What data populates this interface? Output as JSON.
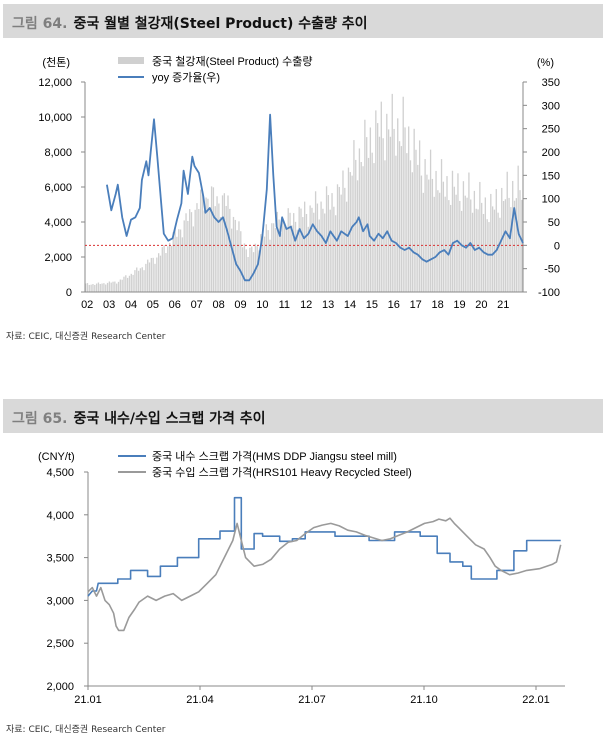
{
  "figure1": {
    "number": "그림 64.",
    "title": "중국 월별 철강재(Steel Product) 수출량 추이",
    "source": "자료: CEIC, 대신증권 Research Center",
    "chart_data": {
      "type": "bar+line",
      "left_unit": "(천톤)",
      "right_unit": "(%)",
      "left_ylim": [
        0,
        12000
      ],
      "left_ticks": [
        "0",
        "2,000",
        "4,000",
        "6,000",
        "8,000",
        "10,000",
        "12,000"
      ],
      "right_ylim": [
        -100,
        350
      ],
      "right_ticks": [
        "-100",
        "-50",
        "0",
        "50",
        "100",
        "150",
        "200",
        "250",
        "300",
        "350"
      ],
      "x_labels": [
        "02",
        "03",
        "04",
        "05",
        "06",
        "07",
        "08",
        "09",
        "10",
        "11",
        "12",
        "13",
        "14",
        "15",
        "16",
        "17",
        "18",
        "19",
        "20",
        "21"
      ],
      "reference_line_yoy": 0,
      "series": [
        {
          "name": "중국 철강재(Steel Product) 수출량",
          "type": "bar",
          "axis": "left",
          "color": "#d0d0d0",
          "annual_levels": [
            {
              "year": "02",
              "level": 450
            },
            {
              "year": "03",
              "level": 580
            },
            {
              "year": "04",
              "level": 1300
            },
            {
              "year": "05",
              "level": 2200
            },
            {
              "year": "06",
              "level": 3800
            },
            {
              "year": "07",
              "level": 5400
            },
            {
              "year": "08",
              "level": 5000
            },
            {
              "year": "09",
              "level": 2100
            },
            {
              "year": "10",
              "level": 3700
            },
            {
              "year": "11",
              "level": 4100
            },
            {
              "year": "12",
              "level": 4700
            },
            {
              "year": "13",
              "level": 5200
            },
            {
              "year": "14",
              "level": 7500
            },
            {
              "year": "15",
              "level": 9100
            },
            {
              "year": "16",
              "level": 9000
            },
            {
              "year": "17",
              "level": 6700
            },
            {
              "year": "18",
              "level": 5800
            },
            {
              "year": "19",
              "level": 5400
            },
            {
              "year": "20",
              "level": 4500
            },
            {
              "year": "21",
              "level": 5600
            }
          ]
        },
        {
          "name": "yoy 증가율(우)",
          "type": "line",
          "axis": "right",
          "color": "#4a7ebb",
          "points": [
            [
              2003.0,
              130
            ],
            [
              2003.2,
              75
            ],
            [
              2003.4,
              110
            ],
            [
              2003.5,
              130
            ],
            [
              2003.7,
              60
            ],
            [
              2003.9,
              20
            ],
            [
              2004.1,
              55
            ],
            [
              2004.3,
              60
            ],
            [
              2004.5,
              80
            ],
            [
              2004.6,
              140
            ],
            [
              2004.8,
              180
            ],
            [
              2004.9,
              150
            ],
            [
              2005.0,
              200
            ],
            [
              2005.15,
              270
            ],
            [
              2005.3,
              190
            ],
            [
              2005.5,
              80
            ],
            [
              2005.6,
              25
            ],
            [
              2005.8,
              10
            ],
            [
              2006.0,
              15
            ],
            [
              2006.2,
              55
            ],
            [
              2006.4,
              90
            ],
            [
              2006.5,
              160
            ],
            [
              2006.7,
              110
            ],
            [
              2006.9,
              190
            ],
            [
              2007.0,
              170
            ],
            [
              2007.2,
              155
            ],
            [
              2007.4,
              105
            ],
            [
              2007.5,
              70
            ],
            [
              2007.7,
              80
            ],
            [
              2007.9,
              60
            ],
            [
              2008.1,
              50
            ],
            [
              2008.3,
              60
            ],
            [
              2008.5,
              30
            ],
            [
              2008.7,
              -5
            ],
            [
              2008.9,
              -40
            ],
            [
              2009.1,
              -55
            ],
            [
              2009.3,
              -75
            ],
            [
              2009.5,
              -75
            ],
            [
              2009.7,
              -60
            ],
            [
              2009.9,
              -40
            ],
            [
              2010.1,
              20
            ],
            [
              2010.3,
              120
            ],
            [
              2010.45,
              280
            ],
            [
              2010.6,
              150
            ],
            [
              2010.75,
              40
            ],
            [
              2010.9,
              20
            ],
            [
              2011.0,
              60
            ],
            [
              2011.2,
              35
            ],
            [
              2011.4,
              40
            ],
            [
              2011.6,
              10
            ],
            [
              2011.8,
              35
            ],
            [
              2012.0,
              15
            ],
            [
              2012.2,
              25
            ],
            [
              2012.4,
              45
            ],
            [
              2012.6,
              30
            ],
            [
              2012.8,
              20
            ],
            [
              2013.0,
              5
            ],
            [
              2013.2,
              30
            ],
            [
              2013.5,
              10
            ],
            [
              2013.7,
              30
            ],
            [
              2014.0,
              20
            ],
            [
              2014.2,
              40
            ],
            [
              2014.4,
              50
            ],
            [
              2014.5,
              60
            ],
            [
              2014.7,
              30
            ],
            [
              2014.9,
              45
            ],
            [
              2015.0,
              20
            ],
            [
              2015.2,
              10
            ],
            [
              2015.4,
              25
            ],
            [
              2015.6,
              15
            ],
            [
              2015.8,
              30
            ],
            [
              2016.0,
              10
            ],
            [
              2016.2,
              5
            ],
            [
              2016.4,
              -5
            ],
            [
              2016.6,
              -10
            ],
            [
              2016.8,
              -5
            ],
            [
              2017.0,
              -15
            ],
            [
              2017.2,
              -20
            ],
            [
              2017.4,
              -30
            ],
            [
              2017.6,
              -35
            ],
            [
              2017.8,
              -30
            ],
            [
              2018.0,
              -25
            ],
            [
              2018.2,
              -15
            ],
            [
              2018.4,
              -10
            ],
            [
              2018.6,
              -20
            ],
            [
              2018.8,
              5
            ],
            [
              2019.0,
              10
            ],
            [
              2019.2,
              0
            ],
            [
              2019.4,
              -5
            ],
            [
              2019.6,
              5
            ],
            [
              2019.8,
              -10
            ],
            [
              2020.0,
              -5
            ],
            [
              2020.2,
              -15
            ],
            [
              2020.4,
              -20
            ],
            [
              2020.6,
              -20
            ],
            [
              2020.8,
              -10
            ],
            [
              2021.0,
              10
            ],
            [
              2021.2,
              30
            ],
            [
              2021.4,
              15
            ],
            [
              2021.6,
              80
            ],
            [
              2021.8,
              25
            ],
            [
              2022.0,
              5
            ]
          ]
        }
      ]
    }
  },
  "figure2": {
    "number": "그림 65.",
    "title": "중국 내수/수입 스크랩 가격 추이",
    "source": "자료: CEIC, 대신증권 Research Center",
    "chart_data": {
      "type": "line",
      "unit": "(CNY/t)",
      "ylim": [
        2000,
        4500
      ],
      "y_ticks": [
        "2,000",
        "2,500",
        "3,000",
        "3,500",
        "4,000",
        "4,500"
      ],
      "x_labels": [
        "21.01",
        "21.04",
        "21.07",
        "21.10",
        "22.01"
      ],
      "series": [
        {
          "name": "중국 내수 스크랩 가격(HMS DDP Jiangsu steel mill)",
          "color": "#4a7ebb",
          "points": [
            [
              0,
              3050
            ],
            [
              0.05,
              3110
            ],
            [
              0.1,
              3110
            ],
            [
              0.12,
              3200
            ],
            [
              0.35,
              3200
            ],
            [
              0.35,
              3250
            ],
            [
              0.5,
              3250
            ],
            [
              0.5,
              3350
            ],
            [
              0.7,
              3350
            ],
            [
              0.7,
              3280
            ],
            [
              0.85,
              3280
            ],
            [
              0.85,
              3400
            ],
            [
              1.05,
              3400
            ],
            [
              1.05,
              3500
            ],
            [
              1.3,
              3500
            ],
            [
              1.3,
              3720
            ],
            [
              1.55,
              3720
            ],
            [
              1.55,
              3810
            ],
            [
              1.72,
              3810
            ],
            [
              1.72,
              4200
            ],
            [
              1.8,
              4200
            ],
            [
              1.8,
              3600
            ],
            [
              1.95,
              3600
            ],
            [
              1.95,
              3780
            ],
            [
              2.05,
              3780
            ],
            [
              2.05,
              3750
            ],
            [
              2.25,
              3750
            ],
            [
              2.25,
              3690
            ],
            [
              2.4,
              3690
            ],
            [
              2.4,
              3720
            ],
            [
              2.55,
              3720
            ],
            [
              2.55,
              3800
            ],
            [
              2.9,
              3800
            ],
            [
              2.9,
              3750
            ],
            [
              3.3,
              3750
            ],
            [
              3.3,
              3700
            ],
            [
              3.6,
              3700
            ],
            [
              3.6,
              3800
            ],
            [
              3.9,
              3800
            ],
            [
              3.9,
              3750
            ],
            [
              4.1,
              3750
            ],
            [
              4.1,
              3550
            ],
            [
              4.25,
              3550
            ],
            [
              4.25,
              3450
            ],
            [
              4.4,
              3450
            ],
            [
              4.4,
              3400
            ],
            [
              4.5,
              3400
            ],
            [
              4.5,
              3250
            ],
            [
              4.8,
              3250
            ],
            [
              4.8,
              3350
            ],
            [
              5.0,
              3350
            ],
            [
              5.0,
              3580
            ],
            [
              5.15,
              3580
            ],
            [
              5.15,
              3700
            ],
            [
              5.55,
              3700
            ]
          ]
        },
        {
          "name": "중국 수입 스크랩 가격(HRS101 Heavy Recycled Steel)",
          "color": "#9a9a9a",
          "points": [
            [
              0,
              3100
            ],
            [
              0.05,
              3150
            ],
            [
              0.1,
              3050
            ],
            [
              0.15,
              3150
            ],
            [
              0.2,
              3000
            ],
            [
              0.25,
              2950
            ],
            [
              0.3,
              2850
            ],
            [
              0.33,
              2700
            ],
            [
              0.36,
              2650
            ],
            [
              0.42,
              2650
            ],
            [
              0.48,
              2800
            ],
            [
              0.55,
              2900
            ],
            [
              0.6,
              2980
            ],
            [
              0.7,
              3050
            ],
            [
              0.8,
              3000
            ],
            [
              0.9,
              3050
            ],
            [
              1.0,
              3080
            ],
            [
              1.1,
              3000
            ],
            [
              1.2,
              3050
            ],
            [
              1.3,
              3100
            ],
            [
              1.4,
              3200
            ],
            [
              1.5,
              3300
            ],
            [
              1.6,
              3500
            ],
            [
              1.7,
              3700
            ],
            [
              1.75,
              3900
            ],
            [
              1.8,
              3700
            ],
            [
              1.85,
              3500
            ],
            [
              1.95,
              3400
            ],
            [
              2.05,
              3420
            ],
            [
              2.15,
              3480
            ],
            [
              2.25,
              3600
            ],
            [
              2.35,
              3680
            ],
            [
              2.45,
              3700
            ],
            [
              2.55,
              3780
            ],
            [
              2.65,
              3850
            ],
            [
              2.75,
              3880
            ],
            [
              2.85,
              3900
            ],
            [
              2.95,
              3870
            ],
            [
              3.05,
              3820
            ],
            [
              3.15,
              3800
            ],
            [
              3.25,
              3760
            ],
            [
              3.35,
              3730
            ],
            [
              3.45,
              3700
            ],
            [
              3.55,
              3720
            ],
            [
              3.65,
              3760
            ],
            [
              3.75,
              3800
            ],
            [
              3.85,
              3850
            ],
            [
              3.95,
              3900
            ],
            [
              4.05,
              3920
            ],
            [
              4.12,
              3950
            ],
            [
              4.2,
              3930
            ],
            [
              4.25,
              3960
            ],
            [
              4.3,
              3900
            ],
            [
              4.35,
              3850
            ],
            [
              4.45,
              3750
            ],
            [
              4.55,
              3650
            ],
            [
              4.65,
              3600
            ],
            [
              4.72,
              3500
            ],
            [
              4.78,
              3400
            ],
            [
              4.85,
              3350
            ],
            [
              4.95,
              3300
            ],
            [
              5.05,
              3320
            ],
            [
              5.15,
              3350
            ],
            [
              5.3,
              3370
            ],
            [
              5.45,
              3420
            ],
            [
              5.5,
              3450
            ],
            [
              5.55,
              3650
            ]
          ]
        }
      ]
    }
  }
}
